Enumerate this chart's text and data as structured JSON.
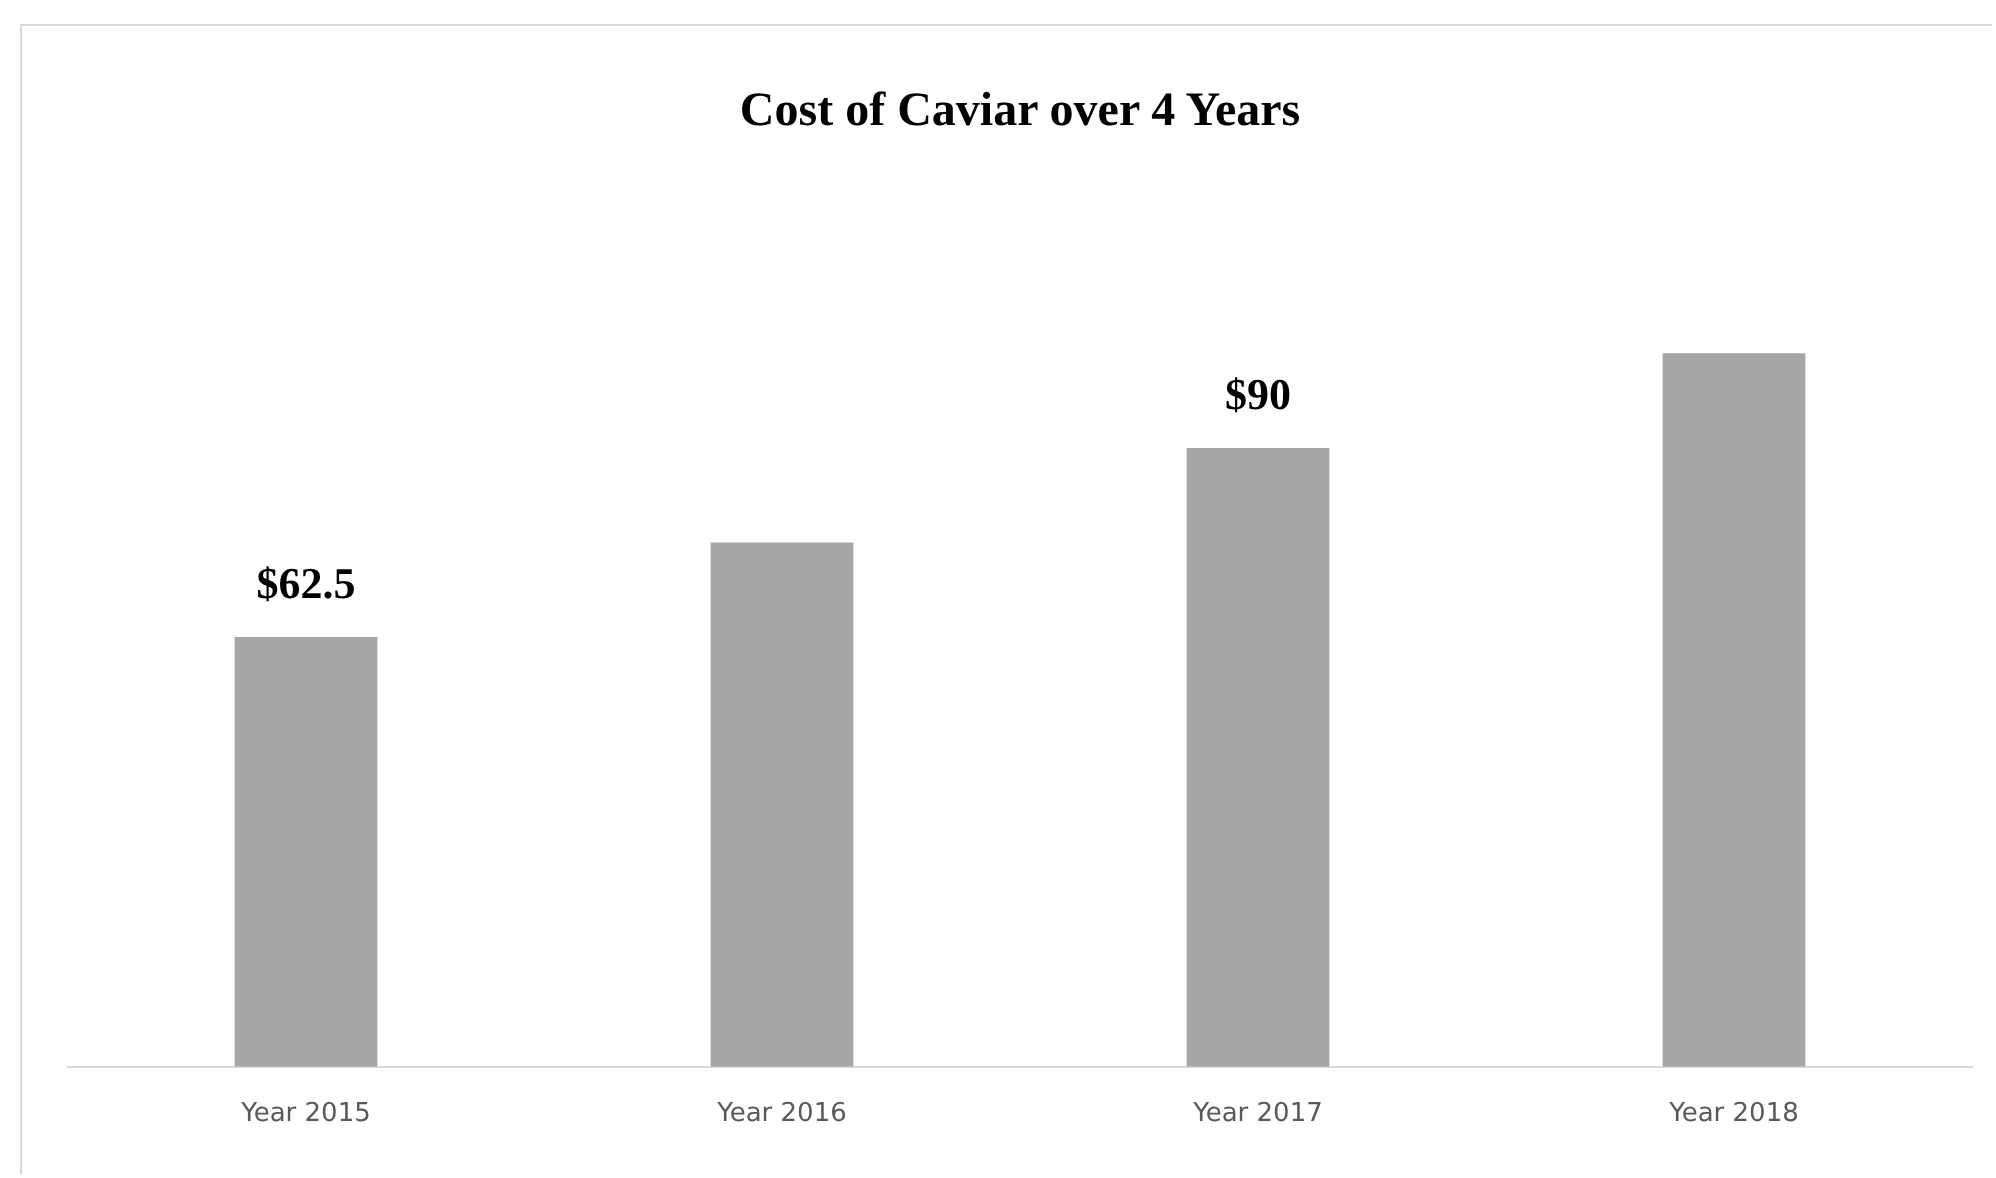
{
  "chart_data": {
    "type": "bar",
    "title": "Cost of Caviar over 4 Years",
    "categories": [
      "Year 2015",
      "Year 2016",
      "Year 2017",
      "Year 2018"
    ],
    "values": [
      62.5,
      76.25,
      90,
      103.75
    ],
    "value_labels": [
      "$62.5",
      null,
      "$90",
      null
    ],
    "color": "#a6a6a6",
    "tick_labels": "x",
    "grid": false,
    "legend": false
  }
}
